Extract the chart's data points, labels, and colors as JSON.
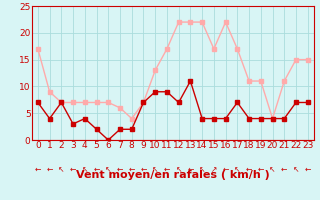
{
  "x": [
    0,
    1,
    2,
    3,
    4,
    5,
    6,
    7,
    8,
    9,
    10,
    11,
    12,
    13,
    14,
    15,
    16,
    17,
    18,
    19,
    20,
    21,
    22,
    23
  ],
  "mean_wind": [
    7,
    4,
    7,
    3,
    4,
    2,
    0,
    2,
    2,
    7,
    9,
    9,
    7,
    11,
    4,
    4,
    4,
    7,
    4,
    4,
    4,
    4,
    7,
    7
  ],
  "gusts": [
    17,
    9,
    7,
    7,
    7,
    7,
    7,
    6,
    4,
    7,
    13,
    17,
    22,
    22,
    22,
    17,
    22,
    17,
    11,
    11,
    4,
    11,
    15,
    15
  ],
  "mean_color": "#cc0000",
  "gust_color": "#ffaaaa",
  "bg_color": "#d8f5f5",
  "grid_color": "#aadddd",
  "xlabel": "Vent moyen/en rafales ( km/h )",
  "ylim": [
    0,
    25
  ],
  "yticks": [
    0,
    5,
    10,
    15,
    20,
    25
  ],
  "xticks": [
    0,
    1,
    2,
    3,
    4,
    5,
    6,
    7,
    8,
    9,
    10,
    11,
    12,
    13,
    14,
    15,
    16,
    17,
    18,
    19,
    20,
    21,
    22,
    23
  ],
  "markersize": 2.5,
  "linewidth": 1.0,
  "xlabel_fontsize": 8,
  "tick_fontsize": 6.5,
  "xlabel_color": "#cc0000",
  "tick_color": "#cc0000",
  "axis_color": "#cc0000",
  "arrows": [
    "←",
    "←",
    "↖",
    "←",
    "↖",
    "←",
    "↖",
    "←",
    "←",
    "←",
    "↖",
    "←",
    "↖",
    "←",
    "↖",
    "↗",
    "←",
    "↖",
    "←",
    "←",
    "↖",
    "←",
    "↖",
    "←"
  ]
}
